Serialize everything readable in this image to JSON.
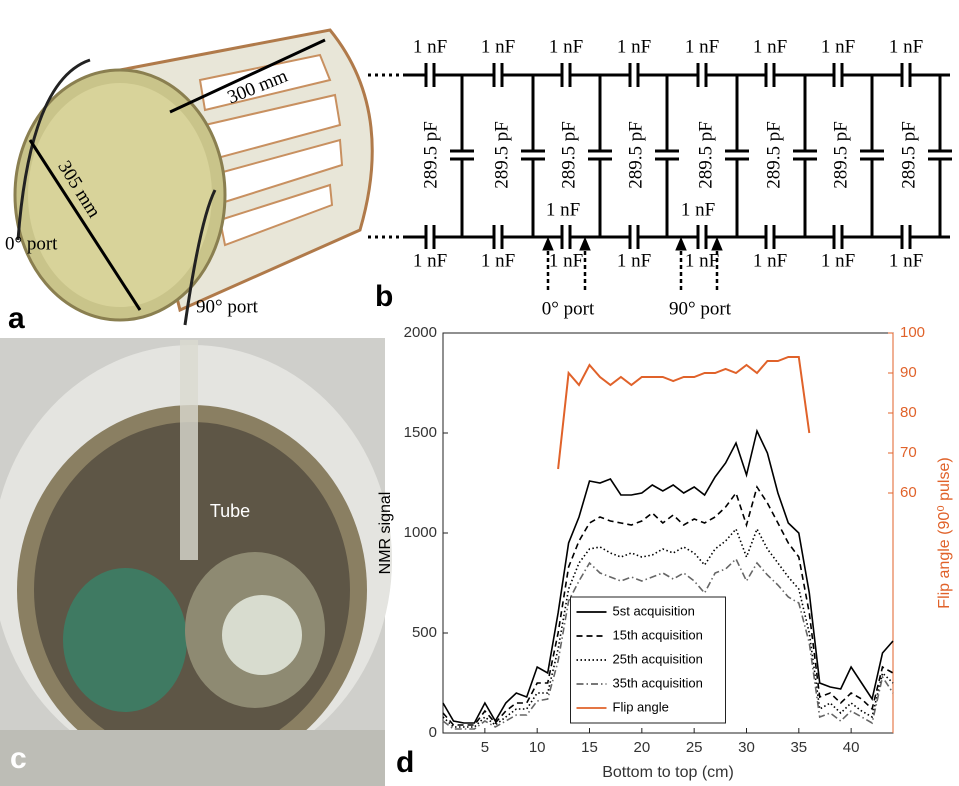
{
  "panels": {
    "a": {
      "label": "a",
      "length": "300 mm",
      "diameter": "305 mm",
      "port0": "0° port",
      "port90": "90° port"
    },
    "b": {
      "label": "b",
      "top_caps": [
        "1 nF",
        "1 nF",
        "1 nF",
        "1 nF",
        "1 nF",
        "1 nF",
        "1 nF",
        "1 nF"
      ],
      "bottom_caps": [
        "1 nF",
        "1 nF",
        "1 nF",
        "1 nF",
        "1 nF",
        "1 nF",
        "1 nF",
        "1 nF"
      ],
      "mid_caps": [
        "1 nF",
        "1 nF"
      ],
      "rung_caps": [
        "289.5 pF",
        "289.5 pF",
        "289.5 pF",
        "289.5 pF",
        "289.5 pF",
        "289.5 pF",
        "289.5 pF",
        "289.5 pF"
      ],
      "port0": "0° port",
      "port90": "90° port"
    },
    "c": {
      "label": "c",
      "tube": "Tube"
    },
    "d": {
      "label": "d"
    }
  },
  "chart_data": {
    "type": "line",
    "xlabel": "Bottom to top (cm)",
    "ylabel": "NMR signal",
    "y2label": "Flip angle (90⁰ pulse)",
    "x": [
      1,
      2,
      3,
      4,
      5,
      6,
      7,
      8,
      9,
      10,
      11,
      12,
      13,
      14,
      15,
      16,
      17,
      18,
      19,
      20,
      21,
      22,
      23,
      24,
      25,
      26,
      27,
      28,
      29,
      30,
      31,
      32,
      33,
      34,
      35,
      36,
      37,
      38,
      39,
      40,
      41,
      42,
      43,
      44
    ],
    "series": [
      {
        "name": "5st acquisition",
        "color": "#000000",
        "dash": "solid",
        "values": [
          150,
          60,
          50,
          50,
          150,
          60,
          150,
          200,
          180,
          330,
          300,
          600,
          950,
          1080,
          1260,
          1250,
          1270,
          1190,
          1190,
          1200,
          1240,
          1210,
          1240,
          1200,
          1230,
          1190,
          1280,
          1350,
          1450,
          1290,
          1510,
          1400,
          1200,
          1050,
          1000,
          700,
          250,
          230,
          220,
          330,
          250,
          170,
          400,
          460
        ]
      },
      {
        "name": "15th acquisition",
        "color": "#000000",
        "dash": "dashed",
        "values": [
          100,
          40,
          40,
          40,
          110,
          50,
          110,
          150,
          150,
          250,
          250,
          500,
          830,
          960,
          1050,
          1080,
          1060,
          1050,
          1040,
          1060,
          1100,
          1050,
          1090,
          1040,
          1070,
          1050,
          1080,
          1130,
          1200,
          1040,
          1230,
          1150,
          1050,
          950,
          880,
          600,
          180,
          200,
          150,
          200,
          170,
          120,
          330,
          300
        ]
      },
      {
        "name": "25th acquisition",
        "color": "#000000",
        "dash": "dotted",
        "values": [
          80,
          30,
          30,
          30,
          80,
          40,
          80,
          120,
          120,
          200,
          200,
          420,
          720,
          850,
          920,
          930,
          900,
          880,
          900,
          880,
          890,
          920,
          900,
          930,
          900,
          840,
          920,
          960,
          1020,
          880,
          1020,
          920,
          850,
          780,
          720,
          500,
          120,
          150,
          100,
          150,
          110,
          80,
          300,
          250
        ]
      },
      {
        "name": "35th acquisition",
        "color": "#666666",
        "dash": "dashdot",
        "values": [
          60,
          20,
          20,
          20,
          60,
          30,
          60,
          90,
          90,
          160,
          170,
          360,
          660,
          760,
          850,
          800,
          780,
          760,
          780,
          760,
          780,
          800,
          770,
          800,
          760,
          700,
          800,
          820,
          870,
          760,
          850,
          790,
          740,
          680,
          650,
          450,
          80,
          100,
          60,
          110,
          80,
          50,
          280,
          200
        ]
      },
      {
        "name": "Flip angle",
        "color": "#e0622a",
        "dash": "solid",
        "axis": "y2",
        "values": [
          null,
          null,
          null,
          null,
          null,
          null,
          null,
          null,
          null,
          null,
          null,
          66,
          90,
          87,
          92,
          89,
          87,
          89,
          87,
          89,
          89,
          89,
          88,
          89,
          89,
          90,
          90,
          91,
          90,
          92,
          90,
          93,
          93,
          94,
          94,
          75,
          null,
          null,
          null,
          null,
          null,
          null,
          null,
          null
        ]
      }
    ],
    "xlim": [
      1,
      44
    ],
    "xticks": [
      5,
      10,
      15,
      20,
      25,
      30,
      35,
      40
    ],
    "ylim": [
      0,
      2000
    ],
    "yticks": [
      0,
      500,
      1000,
      1500,
      2000
    ],
    "y2lim": [
      0,
      100
    ],
    "y2ticks": [
      60,
      70,
      80,
      90,
      100
    ],
    "y2color": "#e0622a",
    "legend": "lower center"
  }
}
